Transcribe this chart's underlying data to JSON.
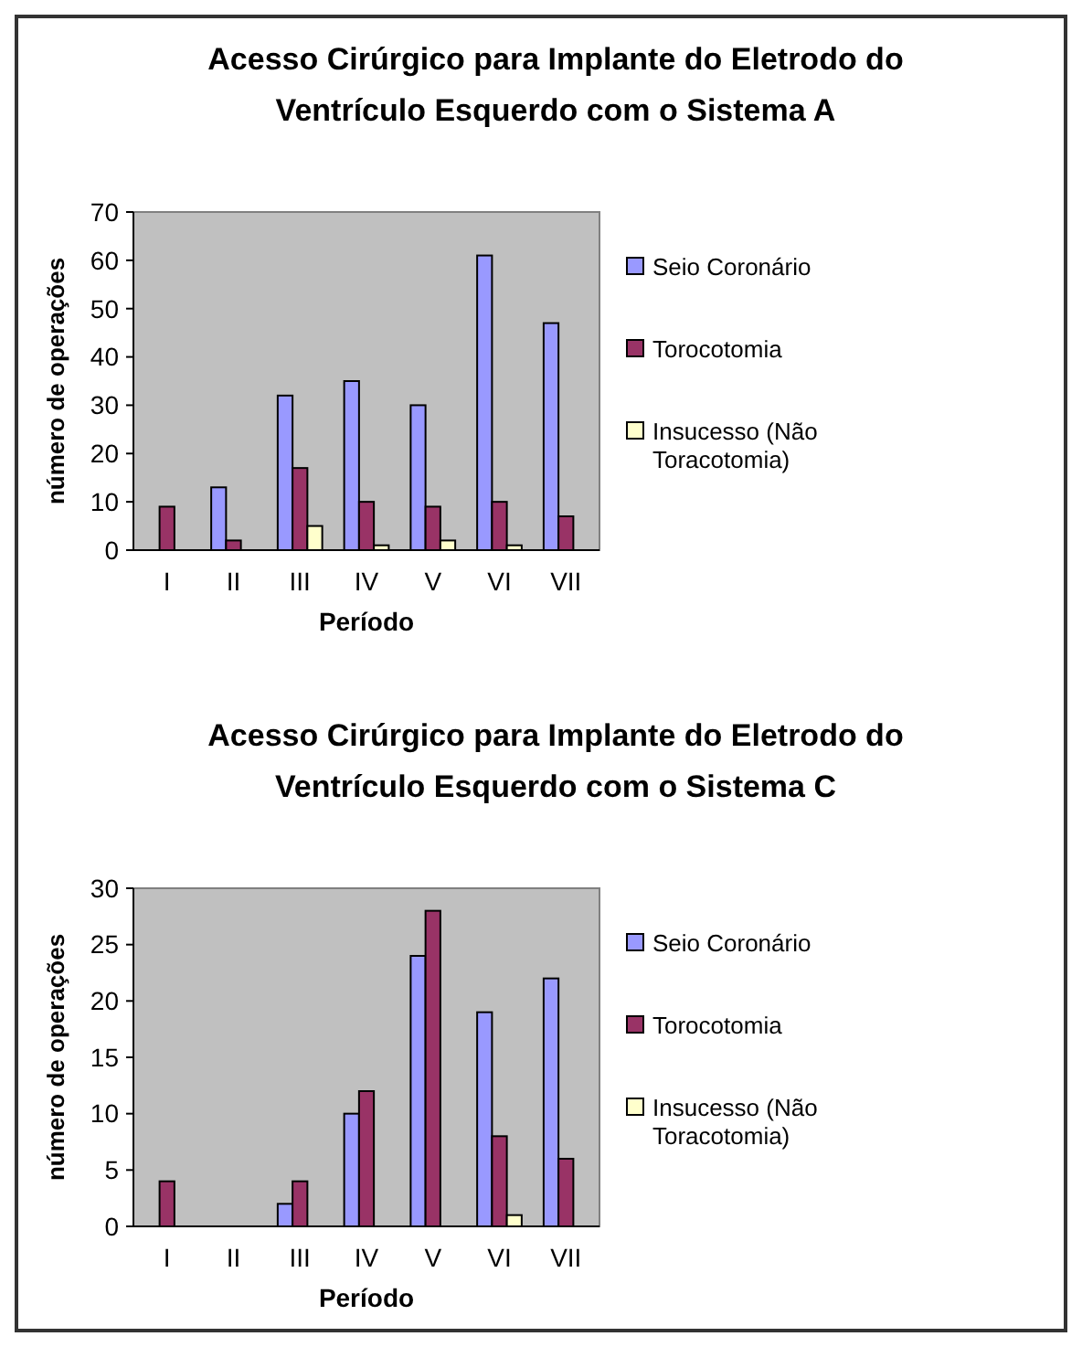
{
  "chart_data": [
    {
      "type": "bar",
      "title": "Acesso Cirúrgico para Implante do Eletrodo do Ventrículo Esquerdo com o Sistema A",
      "xlabel": "Período",
      "ylabel": "número de operações",
      "categories": [
        "I",
        "II",
        "III",
        "IV",
        "V",
        "VI",
        "VII"
      ],
      "series": [
        {
          "name": "Seio Coronário",
          "color": "#9999ff",
          "values": [
            0,
            13,
            32,
            35,
            30,
            61,
            47
          ]
        },
        {
          "name": "Torocotomia",
          "color": "#993366",
          "values": [
            9,
            2,
            17,
            10,
            9,
            10,
            7
          ]
        },
        {
          "name": "Insucesso (Não Toracotomia)",
          "color": "#ffffcc",
          "values": [
            0,
            0,
            5,
            1,
            2,
            1,
            0
          ]
        }
      ],
      "ylim": [
        0,
        70
      ],
      "yticks": [
        0,
        10,
        20,
        30,
        40,
        50,
        60,
        70
      ],
      "grid": false,
      "legend": "right"
    },
    {
      "type": "bar",
      "title": "Acesso Cirúrgico para Implante do Eletrodo do Ventrículo Esquerdo com o Sistema C",
      "xlabel": "Período",
      "ylabel": "número de operações",
      "categories": [
        "I",
        "II",
        "III",
        "IV",
        "V",
        "VI",
        "VII"
      ],
      "series": [
        {
          "name": "Seio Coronário",
          "color": "#9999ff",
          "values": [
            0,
            0,
            2,
            10,
            24,
            19,
            22
          ]
        },
        {
          "name": "Torocotomia",
          "color": "#993366",
          "values": [
            4,
            0,
            4,
            12,
            28,
            8,
            6
          ]
        },
        {
          "name": "Insucesso (Não Toracotomia)",
          "color": "#ffffcc",
          "values": [
            0,
            0,
            0,
            0,
            0,
            1,
            0
          ]
        }
      ],
      "ylim": [
        0,
        30
      ],
      "yticks": [
        0,
        5,
        10,
        15,
        20,
        25,
        30
      ],
      "grid": false,
      "legend": "right"
    }
  ]
}
